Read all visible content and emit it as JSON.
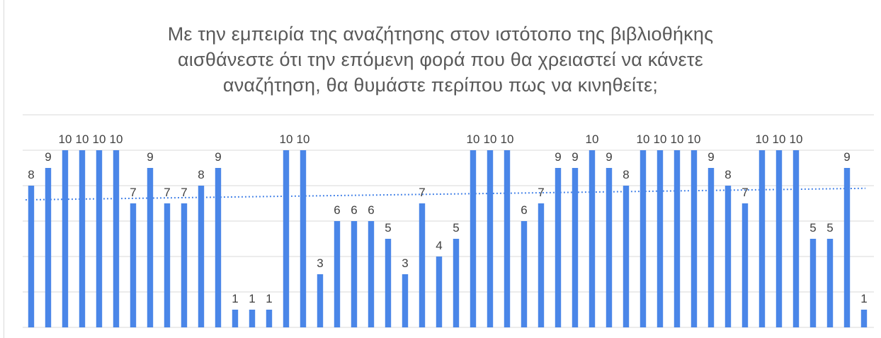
{
  "chart_data": {
    "type": "bar",
    "title_lines": [
      "Με την εμπειρία της αναζήτησης στον ιστότοπο της βιβλιοθήκης",
      "αισθάνεστε ότι την επόμενη φορά που θα χρειαστεί να κάνετε",
      "αναζήτηση, θα θυμάστε περίπου πως να κινηθείτε;"
    ],
    "values": [
      8,
      9,
      10,
      10,
      10,
      10,
      7,
      9,
      7,
      7,
      8,
      9,
      1,
      1,
      1,
      10,
      10,
      3,
      6,
      6,
      6,
      5,
      3,
      7,
      4,
      5,
      10,
      10,
      10,
      6,
      7,
      9,
      9,
      10,
      9,
      8,
      10,
      10,
      10,
      10,
      9,
      8,
      7,
      10,
      10,
      10,
      5,
      5,
      9,
      1
    ],
    "ylim": [
      0,
      12
    ],
    "grid": true,
    "trendline": {
      "type": "linear",
      "style": "dotted",
      "start": 7.2,
      "end": 7.85
    },
    "colors": {
      "bar": "#4a86e8",
      "trend": "#4a86e8",
      "grid": "#d9d9d9"
    }
  }
}
